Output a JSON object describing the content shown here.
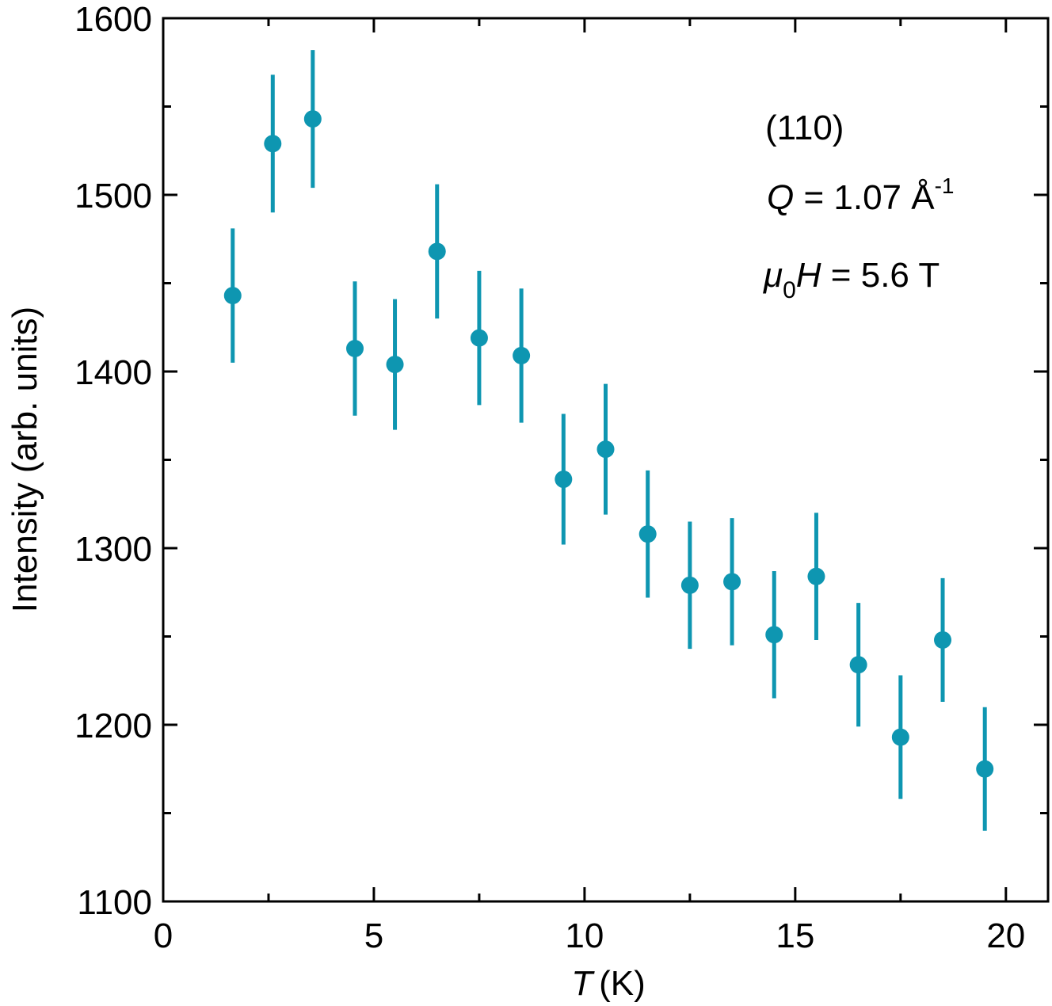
{
  "chart_data": {
    "type": "scatter",
    "title": "",
    "xlabel": "T",
    "xlabel_unit": "(K)",
    "ylabel": "Intensity (arb. units)",
    "xlim": [
      0,
      21
    ],
    "ylim": [
      1100,
      1600
    ],
    "x_ticks": [
      0,
      5,
      10,
      15,
      20
    ],
    "x_tick_labels": [
      "0",
      "5",
      "10",
      "15",
      "20"
    ],
    "y_ticks": [
      1100,
      1200,
      1300,
      1400,
      1500,
      1600
    ],
    "y_tick_labels": [
      "1100",
      "1200",
      "1300",
      "1400",
      "1500",
      "1600"
    ],
    "x_minor_step": 2.5,
    "y_minor_step": 50,
    "grid": false,
    "marker_color": "#0e96b1",
    "series": [
      {
        "name": "(110)",
        "x": [
          1.65,
          2.6,
          3.55,
          4.55,
          5.5,
          6.5,
          7.5,
          8.5,
          9.5,
          10.5,
          11.5,
          12.5,
          13.5,
          14.5,
          15.5,
          16.5,
          17.5,
          18.5,
          19.5
        ],
        "y": [
          1443,
          1529,
          1543,
          1413,
          1404,
          1468,
          1419,
          1409,
          1339,
          1356,
          1308,
          1279,
          1281,
          1251,
          1284,
          1234,
          1193,
          1248,
          1175
        ],
        "err": [
          38,
          39,
          39,
          38,
          37,
          38,
          38,
          38,
          37,
          37,
          36,
          36,
          36,
          36,
          36,
          35,
          35,
          35,
          35
        ]
      }
    ],
    "annotations": {
      "reflection": "(110)",
      "q_symbol": "Q",
      "q_value": " = 1.07 Å",
      "q_exponent": "-1",
      "field_symbol": "μ",
      "field_sub": "0",
      "field_var": "H",
      "field_value": " = 5.6 T"
    }
  }
}
